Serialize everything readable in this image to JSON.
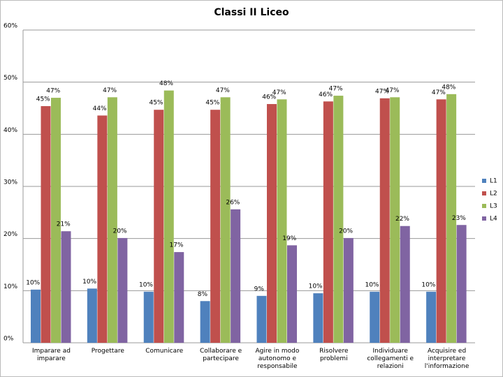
{
  "chart_data": {
    "type": "bar",
    "title": "Classi II Liceo",
    "categories": [
      "Imparare ad imparare",
      "Progettare",
      "Comunicare",
      "Collaborare e partecipare",
      "Agire in modo autonomo e responsabile",
      "Risolvere problemi",
      "Individuare collegamenti e relazioni",
      "Acquisire ed interpretare l'informazione"
    ],
    "series": [
      {
        "name": "L1",
        "color": "#4f81bd",
        "values": [
          10.2,
          10.4,
          9.8,
          8.0,
          9.0,
          9.5,
          9.8,
          9.8
        ],
        "value_labels": [
          "10%",
          "10%",
          "10%",
          "8%",
          "9%",
          "10%",
          "10%",
          "10%"
        ]
      },
      {
        "name": "L2",
        "color": "#c0504d",
        "values": [
          45.4,
          43.6,
          44.7,
          44.7,
          45.8,
          46.3,
          46.9,
          46.7
        ],
        "value_labels": [
          "45%",
          "44%",
          "45%",
          "45%",
          "46%",
          "46%",
          "47%",
          "47%"
        ]
      },
      {
        "name": "L3",
        "color": "#9bbb59",
        "values": [
          47.0,
          47.1,
          48.4,
          47.1,
          46.7,
          47.4,
          47.1,
          47.7
        ],
        "value_labels": [
          "47%",
          "47%",
          "48%",
          "47%",
          "47%",
          "47%",
          "47%",
          "48%"
        ]
      },
      {
        "name": "L4",
        "color": "#8064a2",
        "values": [
          21.4,
          20.1,
          17.4,
          25.6,
          18.7,
          20.1,
          22.4,
          22.6
        ],
        "value_labels": [
          "21%",
          "20%",
          "17%",
          "26%",
          "19%",
          "20%",
          "22%",
          "23%"
        ]
      }
    ],
    "ylim": [
      0,
      60
    ],
    "yticks": [
      {
        "value": 0,
        "label": "0%"
      },
      {
        "value": 10,
        "label": "10%"
      },
      {
        "value": 20,
        "label": "20%"
      },
      {
        "value": 30,
        "label": "30%"
      },
      {
        "value": 40,
        "label": "40%"
      },
      {
        "value": 50,
        "label": "50%"
      },
      {
        "value": 60,
        "label": "60%"
      }
    ],
    "grid": true,
    "legend": "right"
  }
}
